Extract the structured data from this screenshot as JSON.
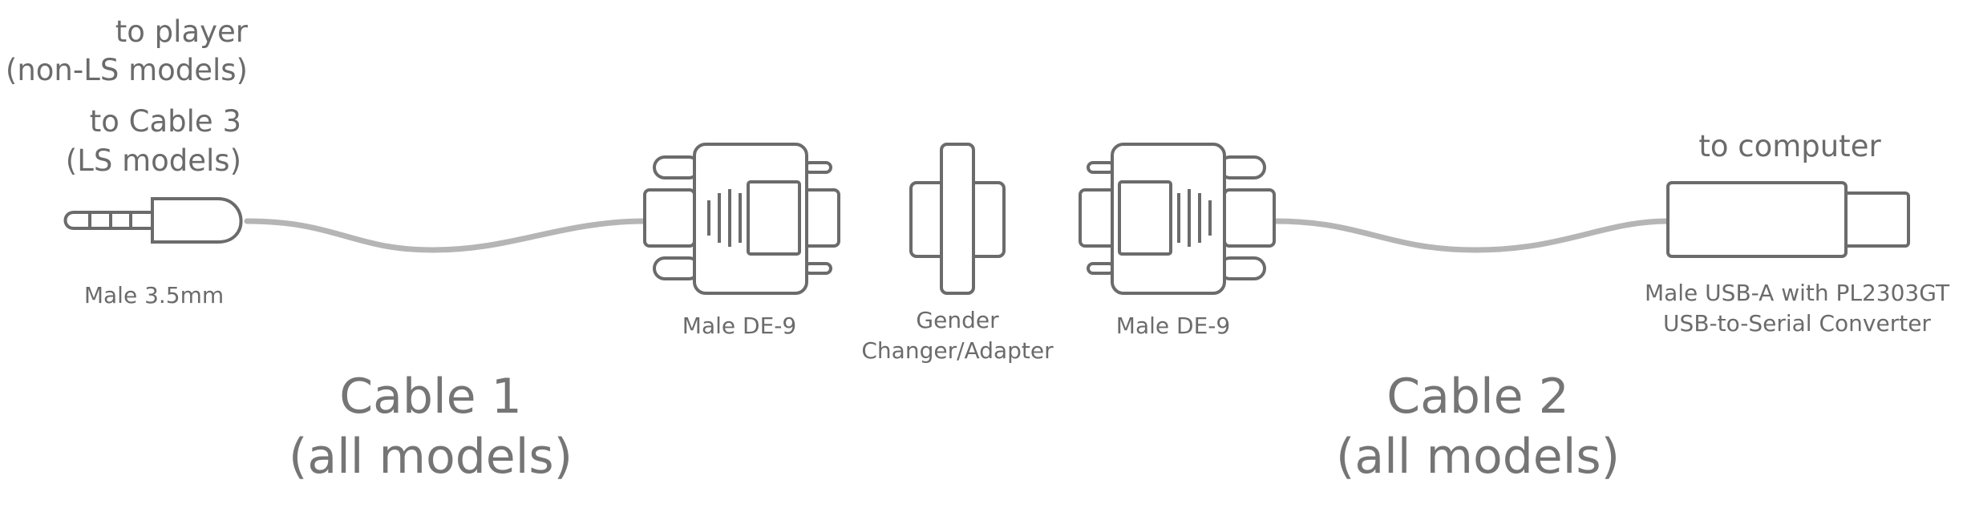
{
  "labels": {
    "to_player_line1": "to player",
    "to_player_line2": "(non-LS models)",
    "to_cable3_line1": "to Cable 3",
    "to_cable3_line2": "(LS models)",
    "to_computer": "to computer",
    "male_35mm": "Male 3.5mm",
    "male_de9_left": "Male DE-9",
    "gender_line1": "Gender",
    "gender_line2": "Changer/Adapter",
    "male_de9_right": "Male DE-9",
    "usb_line1": "Male USB-A with PL2303GT",
    "usb_line2": "USB-to-Serial Converter",
    "cable1_line1": "Cable 1",
    "cable1_line2": "(all models)",
    "cable2_line1": "Cable 2",
    "cable2_line2": "(all models)"
  },
  "colors": {
    "stroke": "#6b6b6b",
    "cable": "#b5b5b5",
    "text": "#6b6b6b"
  }
}
